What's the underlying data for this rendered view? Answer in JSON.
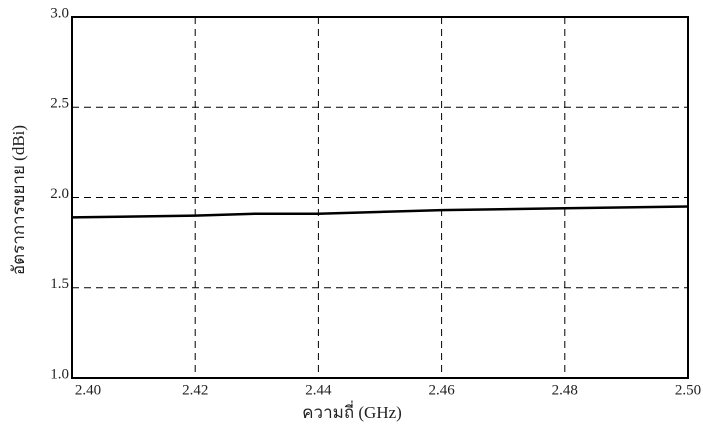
{
  "chart_data": {
    "type": "line",
    "x_label": "ความถี่ (GHz)",
    "y_label": "อัตราการขยาย (dBi)",
    "x": [
      2.4,
      2.42,
      2.43,
      2.44,
      2.46,
      2.48,
      2.5
    ],
    "series": [
      {
        "color": "#000000",
        "values": [
          1.89,
          1.9,
          1.91,
          1.91,
          1.93,
          1.94,
          1.95
        ]
      }
    ],
    "xlim": [
      2.4,
      2.5
    ],
    "xticks": [
      {
        "value": 2.4,
        "label": "2.40"
      },
      2.42,
      2.44,
      2.46,
      2.48,
      {
        "value": 2.5,
        "label": "2.50"
      }
    ],
    "ylim": [
      1.0,
      3.0
    ],
    "yticks": [
      {
        "value": 1,
        "label": "1.0"
      },
      1.5,
      {
        "value": 2,
        "label": "2.0"
      },
      2.5,
      {
        "value": 3,
        "label": "3.0"
      }
    ],
    "grid": true
  }
}
